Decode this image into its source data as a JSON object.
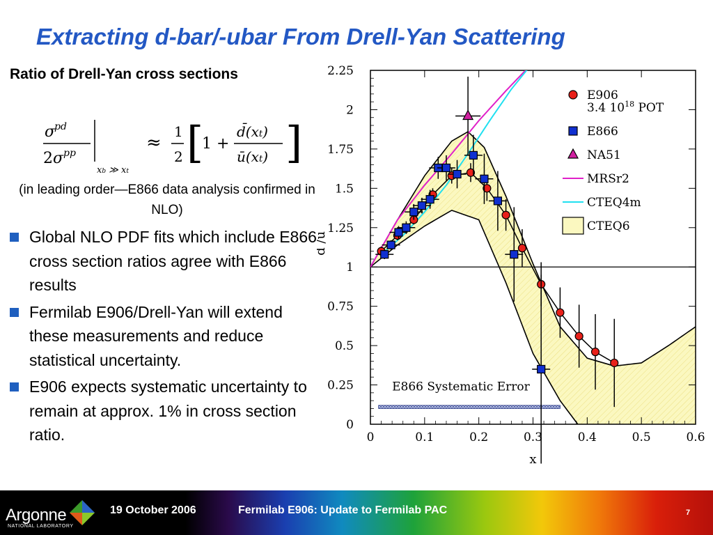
{
  "slide": {
    "title": "Extracting d-bar/-ubar From Drell-Yan Scattering",
    "subheading": "Ratio of Drell-Yan cross sections",
    "note": "(in leading order—E866 data analysis confirmed in NLO)",
    "bullets": [
      "Global NLO PDF fits which include E866 cross section ratios agree with E866 results",
      "Fermilab E906/Drell-Yan will extend these measurements and reduce  statistical uncertainty.",
      "E906 expects systematic uncertainty to remain at approx. 1% in cross section ratio."
    ],
    "bullet_color": "#1f5fbf",
    "title_color": "#2358c4"
  },
  "footer": {
    "logo_text": "Argonne",
    "logo_subtext": "NATIONAL LABORATORY",
    "date": "19 October 2006",
    "title": "Fermilab E906:  Update to Fermilab PAC",
    "page": "7"
  },
  "chart_data": {
    "type": "scatter",
    "xlabel": "x",
    "ylabel": "d̄ /ū",
    "xlim": [
      0,
      0.6
    ],
    "ylim": [
      0,
      2.25
    ],
    "xticks": [
      "0",
      "0.1",
      "0.2",
      "0.3",
      "0.4",
      "0.5",
      "0.6"
    ],
    "yticks": [
      "0",
      "0.25",
      "0.5",
      "0.75",
      "1",
      "1.25",
      "1.5",
      "1.75",
      "2",
      "2.25"
    ],
    "reference_line_y": 1,
    "annotation": "E866 Systematic Error",
    "legend_position": "top-right",
    "legend": [
      {
        "label": "E906",
        "sublabel": "3.4 10",
        "sup": "18",
        "suffix": " POT",
        "kind": "circle",
        "color": "#e8201a"
      },
      {
        "label": "E866",
        "kind": "square",
        "color": "#1030d0"
      },
      {
        "label": "NA51",
        "kind": "triangle",
        "color": "#d020a0"
      },
      {
        "label": "MRSr2",
        "kind": "line",
        "color": "#e020c8"
      },
      {
        "label": "CTEQ4m",
        "kind": "line",
        "color": "#20e0f0"
      },
      {
        "label": "CTEQ6",
        "kind": "band",
        "color": "#fbf8c0"
      }
    ],
    "series": [
      {
        "name": "E906",
        "x": [
          0.02,
          0.05,
          0.08,
          0.115,
          0.15,
          0.185,
          0.215,
          0.25,
          0.28,
          0.315,
          0.35,
          0.385,
          0.415,
          0.45
        ],
        "y": [
          1.1,
          1.2,
          1.3,
          1.46,
          1.58,
          1.6,
          1.5,
          1.33,
          1.12,
          0.89,
          0.71,
          0.56,
          0.46,
          0.39
        ],
        "yerr": [
          0.03,
          0.03,
          0.03,
          0.04,
          0.05,
          0.06,
          0.08,
          0.1,
          0.12,
          0.14,
          0.16,
          0.2,
          0.24,
          0.28
        ]
      },
      {
        "name": "E866",
        "x": [
          0.026,
          0.038,
          0.052,
          0.066,
          0.08,
          0.095,
          0.11,
          0.125,
          0.14,
          0.16,
          0.19,
          0.21,
          0.235,
          0.265,
          0.315
        ],
        "y": [
          1.08,
          1.14,
          1.22,
          1.25,
          1.35,
          1.39,
          1.43,
          1.63,
          1.63,
          1.59,
          1.71,
          1.56,
          1.42,
          1.08,
          0.35
        ],
        "yerr": [
          0.03,
          0.03,
          0.04,
          0.04,
          0.05,
          0.05,
          0.06,
          0.07,
          0.08,
          0.09,
          0.13,
          0.16,
          0.19,
          0.3,
          0.6
        ]
      },
      {
        "name": "NA51",
        "x": [
          0.18
        ],
        "y": [
          1.96
        ],
        "yerr": [
          0.25
        ]
      }
    ],
    "curves": {
      "MRSr2": {
        "x": [
          0.0,
          0.05,
          0.1,
          0.15,
          0.2,
          0.25,
          0.3
        ],
        "y": [
          1.0,
          1.3,
          1.52,
          1.72,
          1.93,
          2.12,
          2.3
        ]
      },
      "CTEQ4m": {
        "x": [
          0.02,
          0.06,
          0.1,
          0.14,
          0.18,
          0.22,
          0.26,
          0.3
        ],
        "y": [
          1.08,
          1.2,
          1.35,
          1.52,
          1.72,
          1.93,
          2.13,
          2.3
        ]
      },
      "CTEQ6_upper": {
        "x": [
          0.0,
          0.05,
          0.1,
          0.15,
          0.18,
          0.21,
          0.25,
          0.3,
          0.35,
          0.4,
          0.45,
          0.5,
          0.55,
          0.6
        ],
        "y": [
          1.0,
          1.3,
          1.58,
          1.8,
          1.86,
          1.76,
          1.45,
          1.02,
          0.62,
          0.42,
          0.37,
          0.39,
          0.5,
          0.62
        ]
      },
      "CTEQ6_lower": {
        "x": [
          0.0,
          0.05,
          0.1,
          0.15,
          0.2,
          0.25,
          0.3,
          0.35,
          0.4,
          0.45
        ],
        "y": [
          1.0,
          1.14,
          1.26,
          1.36,
          1.3,
          0.9,
          0.45,
          0.15,
          -0.08,
          -0.2
        ]
      }
    },
    "systematic_band": {
      "x": [
        0.015,
        0.35
      ],
      "y": [
        0.1,
        0.12
      ]
    }
  }
}
